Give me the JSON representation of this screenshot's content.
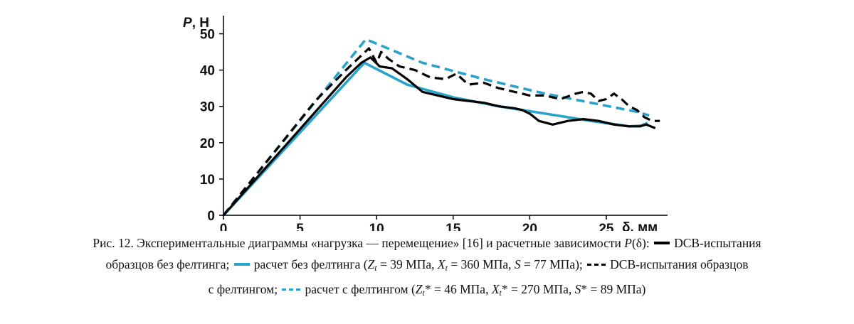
{
  "chart_data": {
    "type": "line",
    "ylabel_italic": "P",
    "ylabel_suffix": ", Н",
    "xlabel": "δ, мм",
    "xlim": [
      0,
      29
    ],
    "ylim": [
      0,
      55
    ],
    "xticks": [
      "0",
      "5",
      "10",
      "15",
      "20",
      "25"
    ],
    "yticks": [
      "0",
      "10",
      "20",
      "30",
      "40",
      "50"
    ],
    "grid": false,
    "series": [
      {
        "name": "DCB-испытания образцов без фелтинга",
        "color": "#000000",
        "dash": "solid",
        "x": [
          0,
          2,
          4,
          6,
          8,
          9,
          9.6,
          10.2,
          11,
          12,
          13,
          14,
          15,
          16,
          17,
          18,
          19,
          19.5,
          20,
          20.6,
          21.5,
          22.5,
          23.5,
          24.5,
          25.5,
          26.5,
          27.2,
          27.6,
          28.2
        ],
        "y": [
          0,
          9.5,
          19,
          28.5,
          38,
          42,
          43.5,
          41,
          40.5,
          37.5,
          34,
          33,
          32,
          31.5,
          31,
          30,
          29.5,
          29,
          28,
          26,
          25,
          26,
          26.5,
          26,
          25,
          24.5,
          24.5,
          25,
          24
        ]
      },
      {
        "name": "расчет без фелтинга",
        "color": "#2aa3cc",
        "dash": "solid",
        "x": [
          0,
          9.2,
          12,
          15,
          18,
          21,
          24,
          26.5,
          27.3,
          27.7
        ],
        "y": [
          0,
          42,
          36,
          32.5,
          30,
          28,
          26,
          24.5,
          24.7,
          25.5
        ]
      },
      {
        "name": "DCB-испытания образцов с фелтингом",
        "color": "#000000",
        "dash": "dashed",
        "x": [
          0,
          2,
          4,
          6,
          8,
          9.5,
          10,
          10.3,
          10.8,
          11.5,
          12.5,
          13.5,
          14.5,
          15.2,
          16,
          17,
          18,
          19,
          20,
          21,
          22,
          23,
          23.5,
          24,
          24.5,
          25,
          25.5,
          26,
          26.5,
          27,
          27.5,
          28,
          28.5
        ],
        "y": [
          0,
          10.5,
          21,
          31.5,
          40,
          46,
          42,
          45,
          43,
          41,
          40,
          38,
          37.5,
          39,
          36,
          36.5,
          35,
          34,
          33,
          33,
          32,
          33.5,
          34,
          33.5,
          31.5,
          32,
          33.5,
          32,
          30,
          29,
          27,
          26,
          26
        ]
      },
      {
        "name": "расчет с фелтингом",
        "color": "#2aa3cc",
        "dash": "dashed",
        "x": [
          0,
          9.3,
          13,
          17,
          21,
          24,
          27,
          27.8
        ],
        "y": [
          0,
          48.5,
          42,
          37.5,
          33.5,
          31,
          28.5,
          27.5
        ]
      }
    ]
  },
  "caption": {
    "line1": "Рис. 12. Экспериментальные диаграммы «нагрузка — перемещение» [16] и расчетные зависимости ",
    "line1_p": "P",
    "line1_delta": "(δ):",
    "line1_legend1": "DCB-испытания",
    "line2_a": "образцов без фелтинга;",
    "line2_b": "расчет без фелтинга (",
    "line2_zt": "Z",
    "line2_zt_sub": "t",
    "line2_zt_val": " = 39 МПа, ",
    "line2_xt": "X",
    "line2_xt_sub": "t",
    "line2_xt_val": " = 360 МПа, ",
    "line2_s": "S",
    "line2_s_val": " = 77 МПа);",
    "line2_c": "DCB-испытания образцов",
    "line3_a": "с фелтингом;",
    "line3_b": "расчет с фелтингом (",
    "line3_zt": "Z",
    "line3_zt_sub": "t",
    "line3_zt_val": "* = 46 МПа, ",
    "line3_xt": "X",
    "line3_xt_sub": "t",
    "line3_xt_val": "* = 270 МПа, ",
    "line3_s": "S",
    "line3_s_val": "* = 89 МПа)"
  }
}
